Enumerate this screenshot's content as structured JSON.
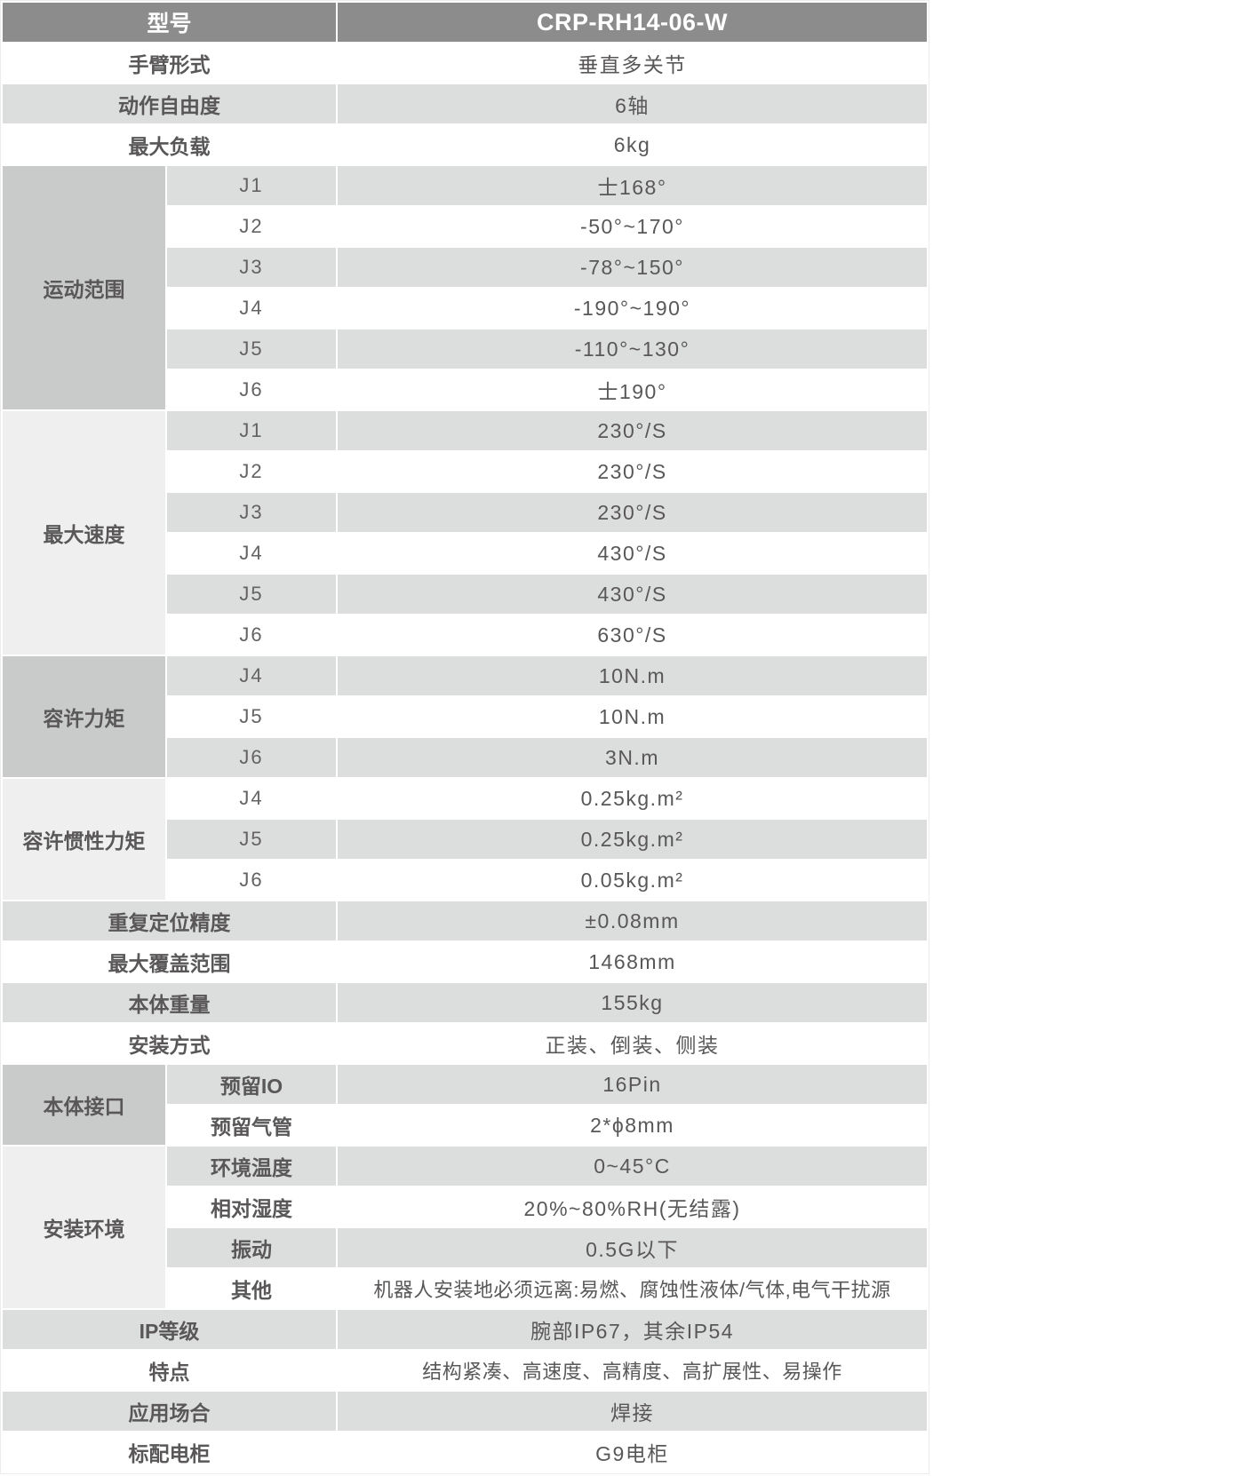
{
  "colors": {
    "header_bg": "#8c8c8c",
    "header_text": "#ffffff",
    "row_stripe_bg": "#dcdddd",
    "row_white_bg": "#ffffff",
    "group_dark_bg": "#c9caca",
    "group_light_bg": "#efefef",
    "text": "#595757",
    "outer_border": "#ececec"
  },
  "header": {
    "model_label": "型号",
    "model_value": "CRP-RH14-06-W"
  },
  "specs": {
    "arm_type": {
      "label": "手臂形式",
      "value": "垂直多关节"
    },
    "dof": {
      "label": "动作自由度",
      "value": "6轴"
    },
    "payload": {
      "label": "最大负载",
      "value": "6kg"
    },
    "motion_range": {
      "label": "运动范围",
      "items": [
        {
          "joint": "J1",
          "value": "士168°"
        },
        {
          "joint": "J2",
          "value": "-50°~170°"
        },
        {
          "joint": "J3",
          "value": "-78°~150°"
        },
        {
          "joint": "J4",
          "value": "-190°~190°"
        },
        {
          "joint": "J5",
          "value": "-110°~130°"
        },
        {
          "joint": "J6",
          "value": "士190°"
        }
      ]
    },
    "max_speed": {
      "label": "最大速度",
      "items": [
        {
          "joint": "J1",
          "value": "230°/S"
        },
        {
          "joint": "J2",
          "value": "230°/S"
        },
        {
          "joint": "J3",
          "value": "230°/S"
        },
        {
          "joint": "J4",
          "value": "430°/S"
        },
        {
          "joint": "J5",
          "value": "430°/S"
        },
        {
          "joint": "J6",
          "value": "630°/S"
        }
      ]
    },
    "allowable_torque": {
      "label": "容许力矩",
      "items": [
        {
          "joint": "J4",
          "value": "10N.m"
        },
        {
          "joint": "J5",
          "value": "10N.m"
        },
        {
          "joint": "J6",
          "value": "3N.m"
        }
      ]
    },
    "allowable_inertia": {
      "label": "容许惯性力矩",
      "items": [
        {
          "joint": "J4",
          "value": "0.25kg.m²"
        },
        {
          "joint": "J5",
          "value": "0.25kg.m²"
        },
        {
          "joint": "J6",
          "value": "0.05kg.m²"
        }
      ]
    },
    "repeatability": {
      "label": "重复定位精度",
      "value": "±0.08mm"
    },
    "max_reach": {
      "label": "最大覆盖范围",
      "value": "1468mm"
    },
    "body_weight": {
      "label": "本体重量",
      "value": "155kg"
    },
    "mounting": {
      "label": "安装方式",
      "value": "正装、倒装、侧装"
    },
    "body_interface": {
      "label": "本体接口",
      "items": [
        {
          "name": "预留IO",
          "value": "16Pin"
        },
        {
          "name": "预留气管",
          "value": "2*ϕ8mm"
        }
      ]
    },
    "install_env": {
      "label": "安装环境",
      "items": [
        {
          "name": "环境温度",
          "value": "0~45°C"
        },
        {
          "name": "相对湿度",
          "value": "20%~80%RH(无结露)"
        },
        {
          "name": "振动",
          "value": "0.5G以下"
        },
        {
          "name": "其他",
          "value": "机器人安装地必须远离:易燃、腐蚀性液体/气体,电气干扰源"
        }
      ]
    },
    "ip_rating": {
      "label": "IP等级",
      "value": "腕部IP67，其余IP54"
    },
    "features": {
      "label": "特点",
      "value": "结构紧凑、高速度、高精度、高扩展性、易操作"
    },
    "application": {
      "label": "应用场合",
      "value": "焊接"
    },
    "cabinet": {
      "label": "标配电柜",
      "value": "G9电柜"
    }
  }
}
